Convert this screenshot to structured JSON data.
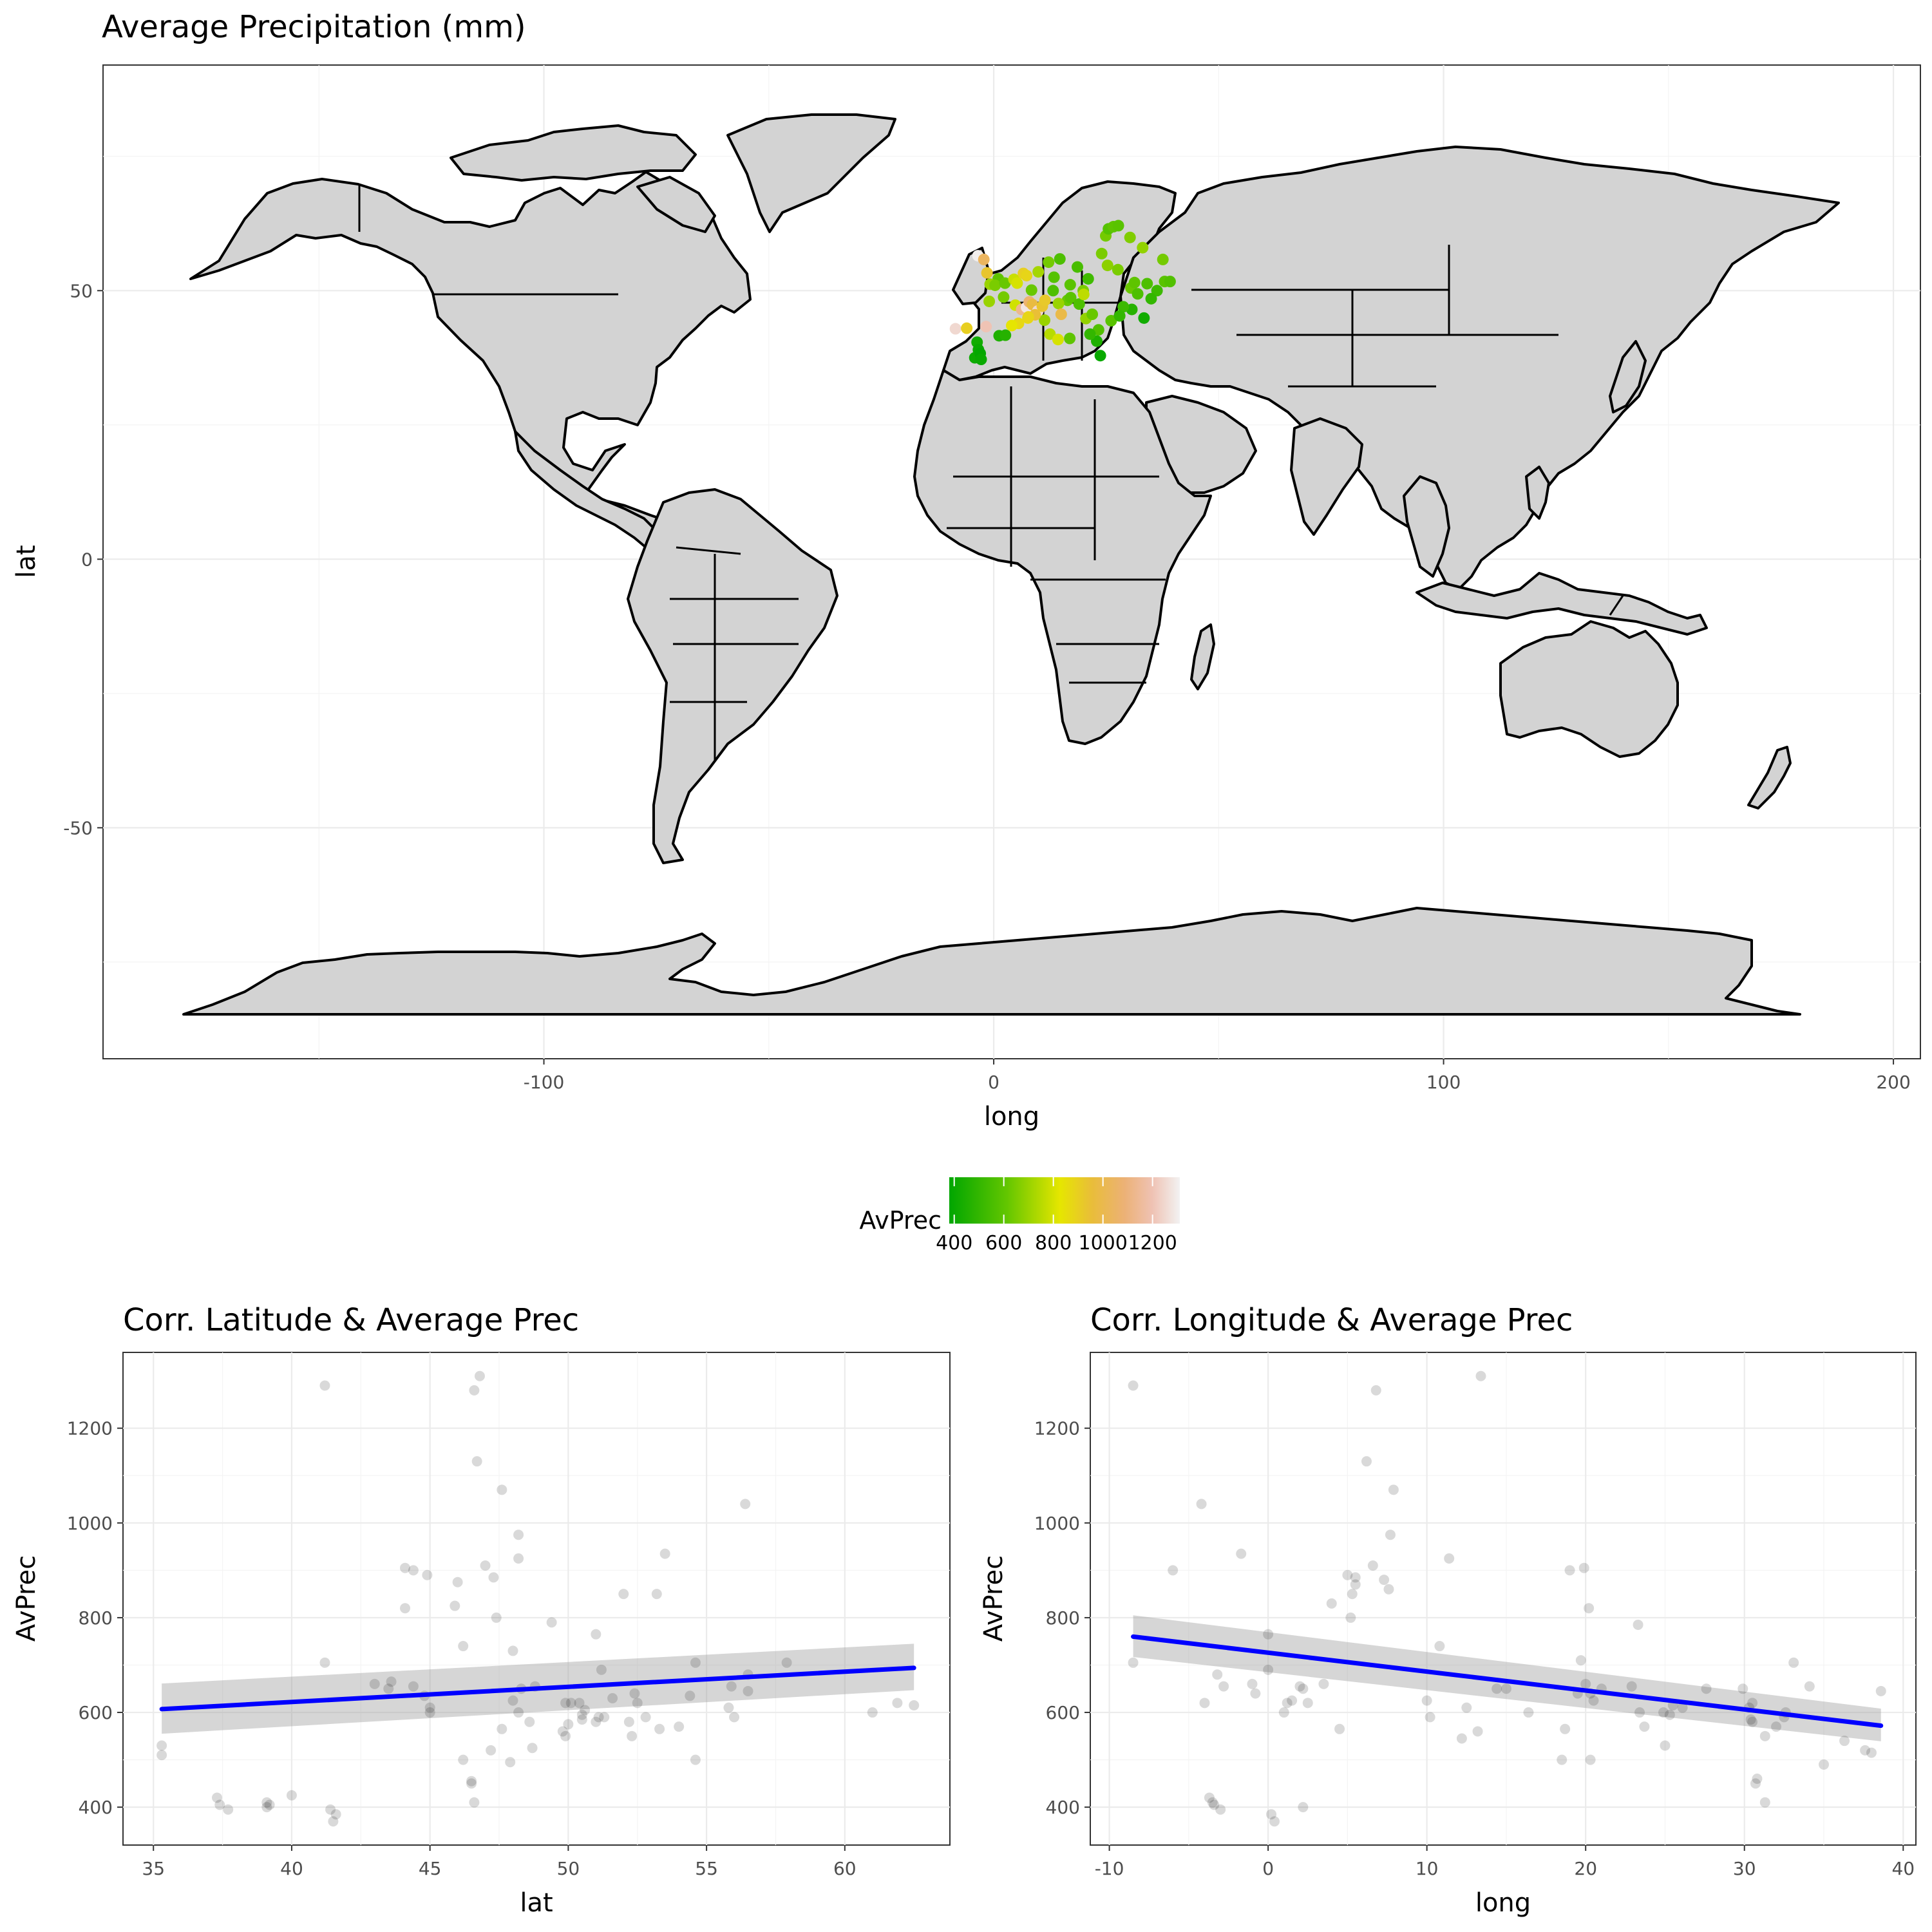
{
  "chart_data": [
    {
      "id": "map",
      "type": "scatter",
      "title": "Average Precipitation (mm)",
      "xlabel": "long",
      "ylabel": "lat",
      "xlim": [
        -198,
        206
      ],
      "ylim": [
        -93,
        92
      ],
      "xticks": [
        -100,
        0,
        100,
        200
      ],
      "xtick_labels": [
        "-100",
        "0",
        "100",
        "200"
      ],
      "yticks": [
        -50,
        0,
        50
      ],
      "ytick_labels": [
        "-50",
        "0",
        "50"
      ],
      "grid": true,
      "background": "world-map",
      "color_variable": "AvPrec",
      "points": [
        {
          "x": -3.5,
          "y": 56.5,
          "v": 1300
        },
        {
          "x": -2.2,
          "y": 55.8,
          "v": 1040
        },
        {
          "x": -1.5,
          "y": 53.3,
          "v": 930
        },
        {
          "x": 1.0,
          "y": 52.2,
          "v": 600
        },
        {
          "x": -0.8,
          "y": 51.2,
          "v": 700
        },
        {
          "x": 0.3,
          "y": 51.0,
          "v": 650
        },
        {
          "x": 2.5,
          "y": 51.4,
          "v": 620
        },
        {
          "x": 4.5,
          "y": 52.1,
          "v": 780
        },
        {
          "x": 5.2,
          "y": 51.4,
          "v": 800
        },
        {
          "x": 6.6,
          "y": 53.2,
          "v": 900
        },
        {
          "x": 7.3,
          "y": 52.8,
          "v": 880
        },
        {
          "x": -1.0,
          "y": 48.0,
          "v": 700
        },
        {
          "x": 2.2,
          "y": 48.8,
          "v": 640
        },
        {
          "x": 4.8,
          "y": 47.3,
          "v": 790
        },
        {
          "x": 6.2,
          "y": 46.5,
          "v": 1130
        },
        {
          "x": 7.3,
          "y": 46.9,
          "v": 1280
        },
        {
          "x": 7.9,
          "y": 47.9,
          "v": 1070
        },
        {
          "x": 8.6,
          "y": 47.4,
          "v": 975
        },
        {
          "x": 9.8,
          "y": 46.2,
          "v": 1250
        },
        {
          "x": 10.8,
          "y": 47.1,
          "v": 930
        },
        {
          "x": 11.4,
          "y": 48.2,
          "v": 920
        },
        {
          "x": 5.5,
          "y": 43.9,
          "v": 870
        },
        {
          "x": 4.0,
          "y": 43.5,
          "v": 830
        },
        {
          "x": 7.6,
          "y": 44.9,
          "v": 860
        },
        {
          "x": -3.7,
          "y": 40.4,
          "v": 420
        },
        {
          "x": -3.4,
          "y": 39.0,
          "v": 400
        },
        {
          "x": -4.2,
          "y": 37.5,
          "v": 410
        },
        {
          "x": -3.0,
          "y": 38.3,
          "v": 390
        },
        {
          "x": -2.8,
          "y": 37.2,
          "v": 400
        },
        {
          "x": 1.2,
          "y": 41.6,
          "v": 450
        },
        {
          "x": 2.6,
          "y": 41.7,
          "v": 470
        },
        {
          "x": 8.4,
          "y": 50.1,
          "v": 620
        },
        {
          "x": 9.9,
          "y": 53.5,
          "v": 720
        },
        {
          "x": 12.2,
          "y": 55.3,
          "v": 640
        },
        {
          "x": 13.4,
          "y": 52.5,
          "v": 580
        },
        {
          "x": 14.7,
          "y": 55.9,
          "v": 560
        },
        {
          "x": 13.2,
          "y": 50.0,
          "v": 560
        },
        {
          "x": 16.4,
          "y": 48.2,
          "v": 620
        },
        {
          "x": 14.4,
          "y": 47.6,
          "v": 700
        },
        {
          "x": 17.1,
          "y": 48.7,
          "v": 590
        },
        {
          "x": 19.0,
          "y": 47.5,
          "v": 560
        },
        {
          "x": 17.0,
          "y": 51.1,
          "v": 590
        },
        {
          "x": 19.9,
          "y": 50.0,
          "v": 650
        },
        {
          "x": 21.0,
          "y": 52.2,
          "v": 530
        },
        {
          "x": 18.6,
          "y": 54.4,
          "v": 550
        },
        {
          "x": 20.5,
          "y": 44.8,
          "v": 690
        },
        {
          "x": 21.9,
          "y": 45.6,
          "v": 620
        },
        {
          "x": 23.3,
          "y": 42.7,
          "v": 570
        },
        {
          "x": 23.7,
          "y": 37.9,
          "v": 400
        },
        {
          "x": 22.9,
          "y": 40.6,
          "v": 450
        },
        {
          "x": 21.4,
          "y": 41.9,
          "v": 500
        },
        {
          "x": 24.0,
          "y": 56.9,
          "v": 650
        },
        {
          "x": 24.9,
          "y": 60.2,
          "v": 640
        },
        {
          "x": 25.5,
          "y": 61.5,
          "v": 580
        },
        {
          "x": 26.6,
          "y": 61.9,
          "v": 600
        },
        {
          "x": 27.7,
          "y": 62.1,
          "v": 590
        },
        {
          "x": 30.3,
          "y": 59.9,
          "v": 660
        },
        {
          "x": 25.3,
          "y": 54.7,
          "v": 680
        },
        {
          "x": 27.6,
          "y": 53.9,
          "v": 650
        },
        {
          "x": 30.5,
          "y": 50.5,
          "v": 620
        },
        {
          "x": 31.3,
          "y": 51.5,
          "v": 600
        },
        {
          "x": 32.0,
          "y": 49.4,
          "v": 560
        },
        {
          "x": 30.7,
          "y": 46.5,
          "v": 470
        },
        {
          "x": 28.8,
          "y": 47.0,
          "v": 520
        },
        {
          "x": 26.1,
          "y": 44.4,
          "v": 590
        },
        {
          "x": 28.0,
          "y": 45.3,
          "v": 500
        },
        {
          "x": 33.4,
          "y": 44.9,
          "v": 420
        },
        {
          "x": 36.3,
          "y": 50.0,
          "v": 520
        },
        {
          "x": 37.6,
          "y": 55.8,
          "v": 640
        },
        {
          "x": 38.0,
          "y": 51.7,
          "v": 590
        },
        {
          "x": 39.2,
          "y": 51.7,
          "v": 570
        },
        {
          "x": 34.1,
          "y": 51.3,
          "v": 560
        },
        {
          "x": 35.0,
          "y": 48.5,
          "v": 500
        },
        {
          "x": 33.1,
          "y": 58.0,
          "v": 690
        },
        {
          "x": 20.0,
          "y": 49.3,
          "v": 760
        },
        {
          "x": 15.0,
          "y": 45.6,
          "v": 990
        },
        {
          "x": 12.5,
          "y": 41.9,
          "v": 750
        },
        {
          "x": 14.3,
          "y": 40.9,
          "v": 800
        },
        {
          "x": 16.9,
          "y": 41.1,
          "v": 600
        },
        {
          "x": 11.3,
          "y": 44.5,
          "v": 700
        },
        {
          "x": 9.2,
          "y": 45.5,
          "v": 950
        },
        {
          "x": 7.7,
          "y": 45.1,
          "v": 880
        },
        {
          "x": -1.7,
          "y": 43.3,
          "v": 1200
        },
        {
          "x": -8.5,
          "y": 42.9,
          "v": 1250
        },
        {
          "x": -6.0,
          "y": 43.0,
          "v": 900
        }
      ]
    },
    {
      "id": "legend",
      "type": "colorbar",
      "title": "AvPrec",
      "range": [
        380,
        1310
      ],
      "ticks": [
        400,
        600,
        800,
        1000,
        1200
      ],
      "tick_labels": [
        "400",
        "600",
        "800",
        "1000",
        "1200"
      ],
      "colors": [
        "#00A600",
        "#63C600",
        "#E6E600",
        "#E9BD3A",
        "#ECB176",
        "#EFC2B3",
        "#F2F2F2"
      ]
    },
    {
      "id": "lat",
      "type": "scatter",
      "title": "Corr. Latitude & Average Prec",
      "xlabel": "lat",
      "ylabel": "AvPrec",
      "xlim": [
        33.9,
        63.8
      ],
      "ylim": [
        320,
        1360
      ],
      "xticks": [
        35,
        40,
        45,
        50,
        55,
        60
      ],
      "xtick_labels": [
        "35",
        "40",
        "45",
        "50",
        "55",
        "60"
      ],
      "yticks": [
        400,
        600,
        800,
        1000,
        1200
      ],
      "ytick_labels": [
        "400",
        "600",
        "800",
        "1000",
        "1200"
      ],
      "grid": true,
      "point_alpha": 0.15,
      "points": [
        [
          35.3,
          530
        ],
        [
          35.3,
          510
        ],
        [
          37.3,
          420
        ],
        [
          37.4,
          405
        ],
        [
          37.7,
          395
        ],
        [
          39.1,
          410
        ],
        [
          39.1,
          400
        ],
        [
          39.2,
          405
        ],
        [
          40.0,
          425
        ],
        [
          41.2,
          705
        ],
        [
          41.2,
          1290
        ],
        [
          41.4,
          395
        ],
        [
          41.6,
          385
        ],
        [
          41.5,
          370
        ],
        [
          43.0,
          660
        ],
        [
          43.5,
          650
        ],
        [
          43.6,
          665
        ],
        [
          44.1,
          905
        ],
        [
          44.1,
          820
        ],
        [
          44.4,
          900
        ],
        [
          44.4,
          655
        ],
        [
          44.8,
          635
        ],
        [
          44.9,
          890
        ],
        [
          45.0,
          610
        ],
        [
          45.0,
          600
        ],
        [
          45.9,
          825
        ],
        [
          46.0,
          875
        ],
        [
          46.2,
          740
        ],
        [
          46.2,
          500
        ],
        [
          46.5,
          450
        ],
        [
          46.5,
          455
        ],
        [
          46.6,
          1280
        ],
        [
          46.6,
          410
        ],
        [
          46.7,
          1130
        ],
        [
          46.8,
          1310
        ],
        [
          47.0,
          910
        ],
        [
          47.2,
          520
        ],
        [
          47.3,
          885
        ],
        [
          47.4,
          800
        ],
        [
          47.6,
          565
        ],
        [
          47.6,
          1070
        ],
        [
          47.9,
          495
        ],
        [
          48.0,
          730
        ],
        [
          48.0,
          625
        ],
        [
          48.2,
          975
        ],
        [
          48.2,
          925
        ],
        [
          48.2,
          600
        ],
        [
          48.3,
          650
        ],
        [
          48.6,
          580
        ],
        [
          48.7,
          525
        ],
        [
          48.8,
          655
        ],
        [
          49.4,
          790
        ],
        [
          49.8,
          560
        ],
        [
          49.9,
          550
        ],
        [
          49.9,
          620
        ],
        [
          50.0,
          575
        ],
        [
          50.1,
          620
        ],
        [
          50.4,
          620
        ],
        [
          50.5,
          595
        ],
        [
          50.5,
          585
        ],
        [
          50.6,
          605
        ],
        [
          51.0,
          580
        ],
        [
          51.0,
          765
        ],
        [
          51.1,
          590
        ],
        [
          51.2,
          690
        ],
        [
          51.3,
          590
        ],
        [
          51.6,
          630
        ],
        [
          52.0,
          850
        ],
        [
          52.2,
          580
        ],
        [
          52.3,
          550
        ],
        [
          52.4,
          640
        ],
        [
          52.5,
          620
        ],
        [
          52.8,
          590
        ],
        [
          53.2,
          850
        ],
        [
          53.3,
          565
        ],
        [
          53.5,
          935
        ],
        [
          54.0,
          570
        ],
        [
          54.4,
          635
        ],
        [
          54.6,
          705
        ],
        [
          54.6,
          500
        ],
        [
          55.8,
          610
        ],
        [
          55.9,
          655
        ],
        [
          56.0,
          590
        ],
        [
          56.4,
          1040
        ],
        [
          56.5,
          680
        ],
        [
          56.5,
          645
        ],
        [
          57.9,
          705
        ],
        [
          61.0,
          600
        ],
        [
          61.9,
          620
        ],
        [
          62.5,
          615
        ]
      ],
      "fit": {
        "x": [
          35.3,
          62.5
        ],
        "y": [
          607,
          694
        ],
        "ci_lower": [
          555,
          647
        ],
        "ci_upper": [
          661,
          745
        ],
        "color": "#0000FF"
      }
    },
    {
      "id": "long",
      "type": "scatter",
      "title": "Corr. Longitude & Average Prec",
      "xlabel": "long",
      "ylabel": "AvPrec",
      "xlim": [
        -11.2,
        40.8
      ],
      "ylim": [
        320,
        1360
      ],
      "xticks": [
        -10,
        0,
        10,
        20,
        30,
        40
      ],
      "xtick_labels": [
        "-10",
        "0",
        "10",
        "20",
        "30",
        "40"
      ],
      "yticks": [
        400,
        600,
        800,
        1000,
        1200
      ],
      "ytick_labels": [
        "400",
        "600",
        "800",
        "1000",
        "1200"
      ],
      "grid": true,
      "point_alpha": 0.15,
      "points": [
        [
          -8.5,
          1290
        ],
        [
          -8.5,
          705
        ],
        [
          -6.0,
          900
        ],
        [
          -4.2,
          1040
        ],
        [
          -4.0,
          620
        ],
        [
          -3.7,
          420
        ],
        [
          -3.5,
          410
        ],
        [
          -3.4,
          405
        ],
        [
          -3.0,
          395
        ],
        [
          -3.2,
          680
        ],
        [
          -2.8,
          655
        ],
        [
          -1.7,
          935
        ],
        [
          -1.0,
          660
        ],
        [
          -0.8,
          640
        ],
        [
          0.0,
          765
        ],
        [
          0.0,
          690
        ],
        [
          0.2,
          385
        ],
        [
          0.4,
          370
        ],
        [
          1.0,
          600
        ],
        [
          1.2,
          620
        ],
        [
          1.5,
          625
        ],
        [
          2.0,
          655
        ],
        [
          2.2,
          650
        ],
        [
          2.2,
          400
        ],
        [
          2.5,
          620
        ],
        [
          3.5,
          660
        ],
        [
          4.0,
          830
        ],
        [
          4.5,
          565
        ],
        [
          5.0,
          890
        ],
        [
          5.2,
          800
        ],
        [
          5.3,
          850
        ],
        [
          5.5,
          870
        ],
        [
          5.5,
          885
        ],
        [
          6.2,
          1130
        ],
        [
          6.6,
          910
        ],
        [
          6.8,
          1280
        ],
        [
          7.3,
          880
        ],
        [
          7.6,
          860
        ],
        [
          7.7,
          975
        ],
        [
          7.9,
          1070
        ],
        [
          10.0,
          625
        ],
        [
          10.2,
          590
        ],
        [
          10.8,
          740
        ],
        [
          11.4,
          925
        ],
        [
          12.2,
          545
        ],
        [
          12.5,
          610
        ],
        [
          13.2,
          560
        ],
        [
          13.4,
          1310
        ],
        [
          14.4,
          650
        ],
        [
          15.0,
          650
        ],
        [
          16.4,
          600
        ],
        [
          18.5,
          500
        ],
        [
          18.7,
          565
        ],
        [
          19.0,
          900
        ],
        [
          19.5,
          640
        ],
        [
          19.7,
          710
        ],
        [
          19.9,
          905
        ],
        [
          20.0,
          660
        ],
        [
          20.2,
          820
        ],
        [
          20.3,
          500
        ],
        [
          20.3,
          640
        ],
        [
          20.5,
          625
        ],
        [
          21.0,
          650
        ],
        [
          22.9,
          655
        ],
        [
          23.3,
          785
        ],
        [
          23.4,
          600
        ],
        [
          23.7,
          570
        ],
        [
          24.9,
          600
        ],
        [
          25.0,
          530
        ],
        [
          25.3,
          595
        ],
        [
          25.5,
          615
        ],
        [
          26.1,
          610
        ],
        [
          27.6,
          650
        ],
        [
          29.9,
          650
        ],
        [
          30.3,
          610
        ],
        [
          30.4,
          585
        ],
        [
          30.5,
          620
        ],
        [
          30.5,
          580
        ],
        [
          30.7,
          450
        ],
        [
          30.8,
          460
        ],
        [
          31.3,
          410
        ],
        [
          31.3,
          550
        ],
        [
          32.0,
          570
        ],
        [
          32.5,
          590
        ],
        [
          32.6,
          600
        ],
        [
          33.1,
          705
        ],
        [
          34.1,
          655
        ],
        [
          35.0,
          490
        ],
        [
          36.3,
          540
        ],
        [
          37.6,
          520
        ],
        [
          38.0,
          515
        ],
        [
          38.6,
          645
        ]
      ],
      "fit": {
        "x": [
          -8.5,
          38.6
        ],
        "y": [
          760,
          572
        ],
        "ci_lower": [
          717,
          539
        ],
        "ci_upper": [
          805,
          608
        ],
        "color": "#0000FF"
      }
    }
  ]
}
